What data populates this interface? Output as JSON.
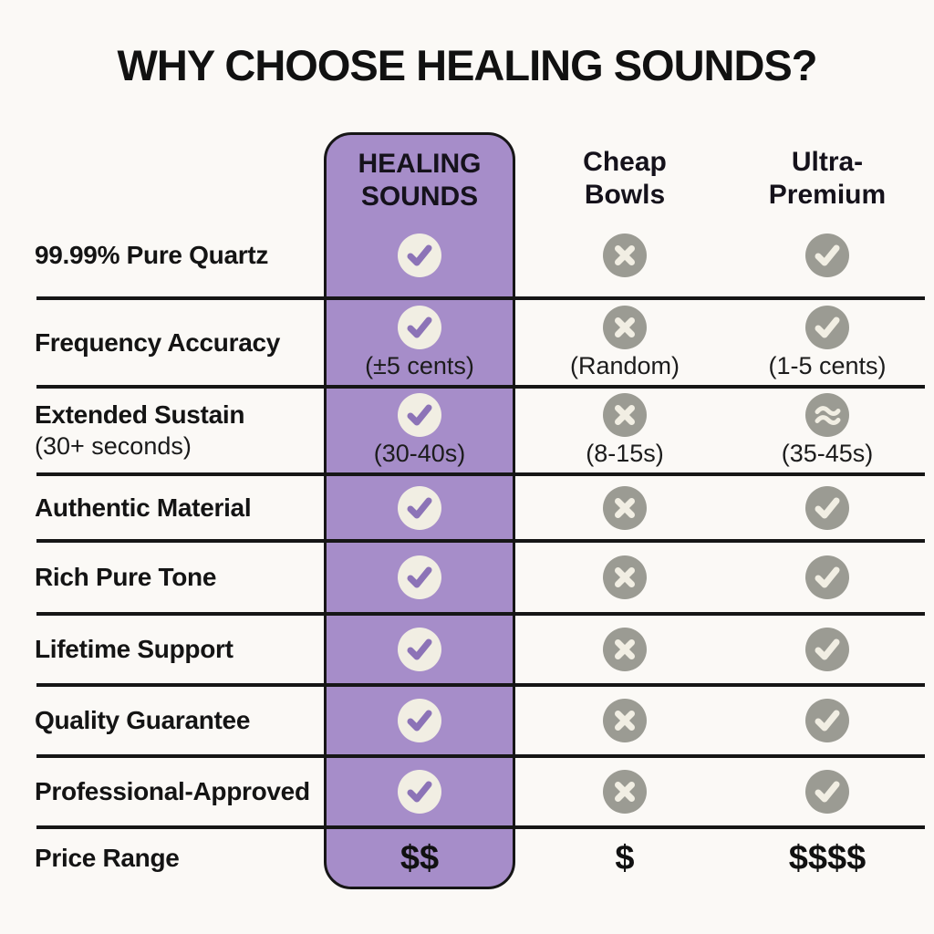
{
  "title": "WHY CHOOSE HEALING SOUNDS?",
  "columns": [
    {
      "id": "healing",
      "label": "HEALING\nSOUNDS",
      "highlighted": true
    },
    {
      "id": "cheap",
      "label": "Cheap\nBowls",
      "highlighted": false
    },
    {
      "id": "ultra",
      "label": "Ultra-\nPremium",
      "highlighted": false
    }
  ],
  "rows": [
    {
      "feature": "99.99% Pure Quartz",
      "sub": "",
      "cells": {
        "healing": {
          "icon": "check",
          "note": ""
        },
        "cheap": {
          "icon": "cross",
          "note": ""
        },
        "ultra": {
          "icon": "check",
          "note": ""
        }
      }
    },
    {
      "feature": "Frequency Accuracy",
      "sub": "",
      "cells": {
        "healing": {
          "icon": "check",
          "note": "(±5 cents)"
        },
        "cheap": {
          "icon": "cross",
          "note": "(Random)"
        },
        "ultra": {
          "icon": "check",
          "note": "(1-5 cents)"
        }
      }
    },
    {
      "feature": "Extended Sustain",
      "sub": "(30+ seconds)",
      "cells": {
        "healing": {
          "icon": "check",
          "note": "(30-40s)"
        },
        "cheap": {
          "icon": "cross",
          "note": "(8-15s)"
        },
        "ultra": {
          "icon": "approx",
          "note": "(35-45s)"
        }
      }
    },
    {
      "feature": "Authentic Material",
      "sub": "",
      "cells": {
        "healing": {
          "icon": "check",
          "note": ""
        },
        "cheap": {
          "icon": "cross",
          "note": ""
        },
        "ultra": {
          "icon": "check",
          "note": ""
        }
      }
    },
    {
      "feature": "Rich Pure Tone",
      "sub": "",
      "cells": {
        "healing": {
          "icon": "check",
          "note": ""
        },
        "cheap": {
          "icon": "cross",
          "note": ""
        },
        "ultra": {
          "icon": "check",
          "note": ""
        }
      }
    },
    {
      "feature": "Lifetime Support",
      "sub": "",
      "cells": {
        "healing": {
          "icon": "check",
          "note": ""
        },
        "cheap": {
          "icon": "cross",
          "note": ""
        },
        "ultra": {
          "icon": "check",
          "note": ""
        }
      }
    },
    {
      "feature": "Quality Guarantee",
      "sub": "",
      "cells": {
        "healing": {
          "icon": "check",
          "note": ""
        },
        "cheap": {
          "icon": "cross",
          "note": ""
        },
        "ultra": {
          "icon": "check",
          "note": ""
        }
      }
    },
    {
      "feature": "Professional-Approved",
      "sub": "",
      "cells": {
        "healing": {
          "icon": "check",
          "note": ""
        },
        "cheap": {
          "icon": "cross",
          "note": ""
        },
        "ultra": {
          "icon": "check",
          "note": ""
        }
      }
    },
    {
      "feature": "Price Range",
      "sub": "",
      "cells": {
        "healing": {
          "text": "$$"
        },
        "cheap": {
          "text": "$"
        },
        "ultra": {
          "text": "$$$$"
        }
      }
    }
  ],
  "colors": {
    "bg": "#fbf9f6",
    "ink": "#161616",
    "accent_purple": "#a68dc9",
    "glyph_purple": "#8c73b7",
    "circle_cream": "#f1eee3",
    "circle_gray": "#9b9b93"
  },
  "chart_data": {
    "type": "table",
    "title": "WHY CHOOSE HEALING SOUNDS?",
    "columns": [
      "Feature",
      "HEALING SOUNDS",
      "Cheap Bowls",
      "Ultra-Premium"
    ],
    "rows": [
      [
        "99.99% Pure Quartz",
        "yes",
        "no",
        "yes"
      ],
      [
        "Frequency Accuracy",
        "yes (±5 cents)",
        "no (Random)",
        "yes (1-5 cents)"
      ],
      [
        "Extended Sustain (30+ seconds)",
        "yes (30-40s)",
        "no (8-15s)",
        "approx (35-45s)"
      ],
      [
        "Authentic Material",
        "yes",
        "no",
        "yes"
      ],
      [
        "Rich Pure Tone",
        "yes",
        "no",
        "yes"
      ],
      [
        "Lifetime Support",
        "yes",
        "no",
        "yes"
      ],
      [
        "Quality Guarantee",
        "yes",
        "no",
        "yes"
      ],
      [
        "Professional-Approved",
        "yes",
        "no",
        "yes"
      ],
      [
        "Price Range",
        "$$",
        "$",
        "$$$$"
      ]
    ]
  }
}
